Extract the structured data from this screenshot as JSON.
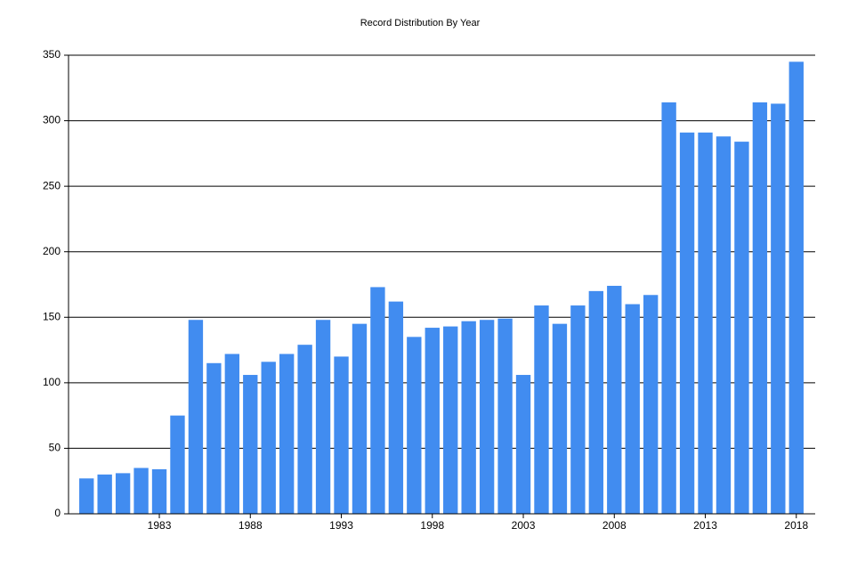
{
  "chart_data": {
    "type": "bar",
    "title": "Record Distribution By Year",
    "categories": [
      null,
      null,
      null,
      null,
      "1983",
      null,
      null,
      null,
      null,
      "1988",
      null,
      null,
      null,
      null,
      "1993",
      null,
      null,
      null,
      null,
      "1998",
      null,
      null,
      null,
      null,
      "2003",
      null,
      null,
      null,
      null,
      "2008",
      null,
      null,
      null,
      null,
      "2013",
      null,
      null,
      null,
      null,
      "2018"
    ],
    "values": [
      27,
      30,
      31,
      35,
      34,
      75,
      148,
      115,
      122,
      106,
      116,
      122,
      129,
      148,
      120,
      145,
      173,
      162,
      135,
      142,
      143,
      147,
      148,
      149,
      106,
      159,
      145,
      159,
      170,
      174,
      160,
      167,
      314,
      291,
      291,
      288,
      284,
      314,
      313,
      345
    ],
    "color": "#418cf0",
    "ylim": [
      0,
      350
    ],
    "yticks": [
      0,
      50,
      100,
      150,
      200,
      250,
      300,
      350
    ],
    "grid": true
  }
}
